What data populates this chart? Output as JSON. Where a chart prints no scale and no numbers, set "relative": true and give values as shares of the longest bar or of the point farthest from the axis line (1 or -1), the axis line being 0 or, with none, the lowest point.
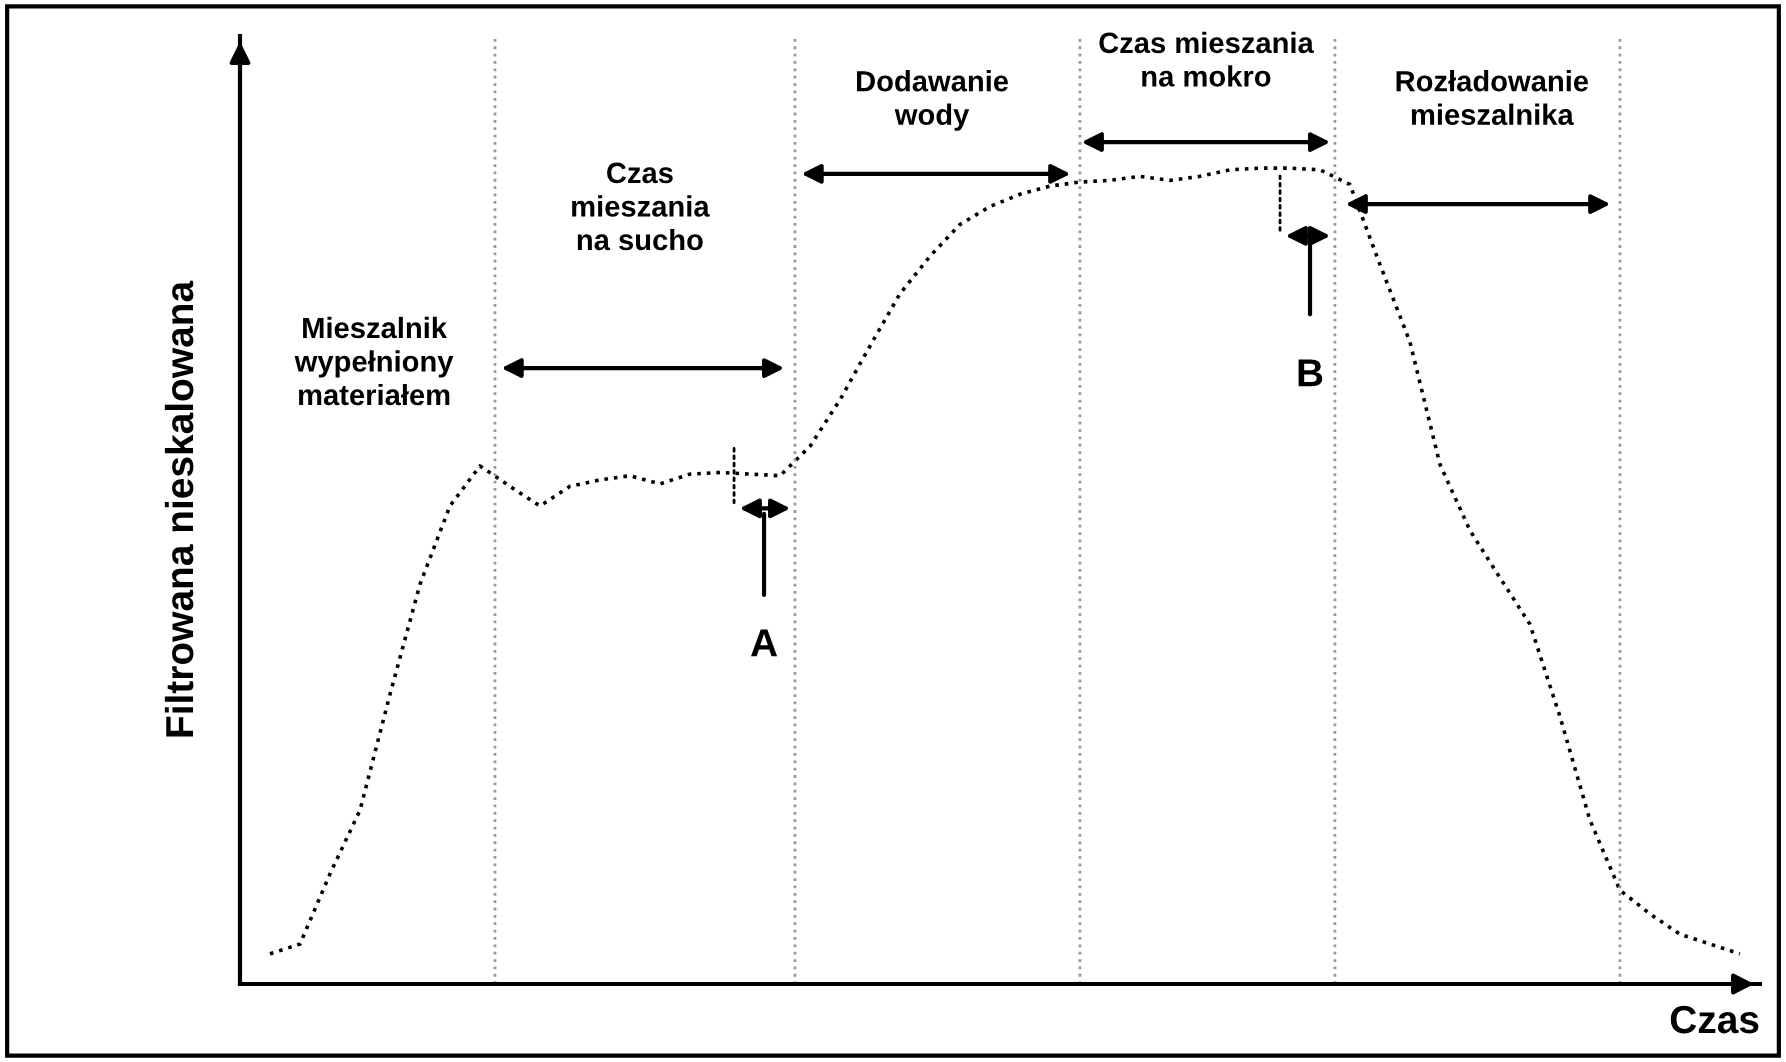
{
  "chart_data": {
    "type": "line",
    "relative": true,
    "xlabel": "Czas",
    "ylabel": "Filtrowana nieskalowana",
    "categories": [
      null,
      null,
      null,
      null,
      null,
      null,
      null,
      null,
      null,
      null,
      null,
      null,
      null,
      null,
      null,
      null,
      null,
      null,
      null,
      null,
      null,
      null,
      null,
      null,
      null,
      null,
      null,
      null,
      null,
      null,
      null,
      null,
      null,
      null,
      null,
      null,
      null,
      null,
      null,
      null,
      null,
      null,
      null,
      null,
      null,
      null,
      null,
      null,
      null,
      null
    ],
    "series": [
      {
        "color": "#000000",
        "values": [
          0.037,
          0.049,
          0.135,
          0.213,
          0.355,
          0.49,
          0.586,
          0.635,
          0.61,
          0.586,
          0.61,
          0.618,
          0.623,
          0.613,
          0.625,
          0.627,
          0.625,
          0.623,
          0.659,
          0.716,
          0.782,
          0.846,
          0.892,
          0.931,
          0.953,
          0.968,
          0.978,
          0.983,
          0.985,
          0.99,
          0.985,
          0.99,
          0.998,
          1.0,
          1.0,
          0.998,
          0.98,
          0.882,
          0.787,
          0.637,
          0.556,
          0.498,
          0.441,
          0.328,
          0.201,
          0.115,
          0.086,
          0.061,
          0.049,
          0.037
        ]
      }
    ],
    "line_style": "dotted",
    "marker": "none",
    "grid": false,
    "legend": false,
    "annotations": [
      "Mieszalnik\nwypełniony\nmateriałem",
      "Czas\nmieszania\nna sucho",
      "Dodawanie\nwody",
      "Czas mieszania\nna mokro",
      "Rozładowanie\nmieszalnika",
      "A",
      "B"
    ]
  }
}
